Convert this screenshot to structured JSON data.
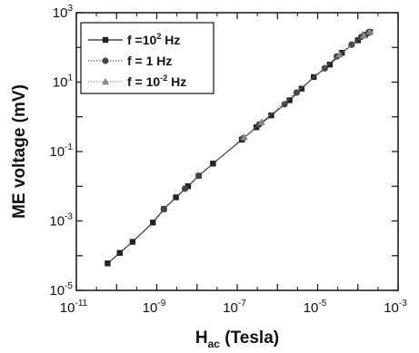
{
  "chart_data": {
    "type": "scatter",
    "xscale": "log",
    "yscale": "log",
    "xlim": [
      1e-11,
      0.001
    ],
    "ylim": [
      1e-05,
      1000
    ],
    "x_ticks": [
      {
        "value": 1e-11,
        "base": "10",
        "exp": "-11"
      },
      {
        "value": 1e-09,
        "base": "10",
        "exp": "-9"
      },
      {
        "value": 1e-07,
        "base": "10",
        "exp": "-7"
      },
      {
        "value": 1e-05,
        "base": "10",
        "exp": "-5"
      },
      {
        "value": 0.001,
        "base": "10",
        "exp": "-3"
      }
    ],
    "y_ticks": [
      {
        "value": 1e-05,
        "base": "10",
        "exp": "-5"
      },
      {
        "value": 0.001,
        "base": "10",
        "exp": "-3"
      },
      {
        "value": 0.1,
        "base": "10",
        "exp": "-1"
      },
      {
        "value": 10,
        "base": "10",
        "exp": "1"
      },
      {
        "value": 1000,
        "base": "10",
        "exp": "3"
      }
    ],
    "xlabel": {
      "main": "H",
      "sub": "ac",
      "rest": " (Tesla)"
    },
    "ylabel": "ME voltage (mV)",
    "legend_position": "top-left",
    "series": [
      {
        "name": {
          "pre": "f =10",
          "sup": "2",
          "post": " Hz"
        },
        "marker": "square",
        "color": "#222222",
        "line_style": "solid",
        "x": [
          6e-11,
          1.2e-10,
          2.5e-10,
          8e-10,
          1.5e-09,
          3e-09,
          6e-09,
          1.1e-08,
          2.5e-08,
          1.3e-07,
          3e-07,
          7e-07,
          2e-06,
          4e-06,
          8e-06,
          2e-05,
          4e-05,
          0.0001,
          0.00015,
          0.0002
        ],
        "y": [
          6e-05,
          0.00012,
          0.00025,
          0.0009,
          0.0022,
          0.0048,
          0.01,
          0.02,
          0.045,
          0.22,
          0.5,
          1.1,
          3,
          6.5,
          14,
          32,
          70,
          160,
          230,
          280
        ]
      },
      {
        "name": {
          "pre": "f = 1 Hz",
          "sup": "",
          "post": ""
        },
        "marker": "circle",
        "color": "#444444",
        "line_style": "dotted",
        "x": [
          1.5e-09,
          5e-09,
          1.1e-08,
          1.4e-07,
          3.5e-07,
          1.5e-06,
          3e-06,
          1.5e-05,
          3e-05,
          7e-05,
          0.00012,
          0.00018
        ],
        "y": [
          0.0022,
          0.0085,
          0.02,
          0.24,
          0.6,
          2.3,
          5,
          25,
          55,
          120,
          200,
          260
        ]
      },
      {
        "name": {
          "pre": "f = 10",
          "sup": "-2",
          "post": " Hz"
        },
        "marker": "triangle",
        "color": "#888888",
        "line_style": "dotted",
        "x": [
          1.5e-07,
          4e-07,
          3.5e-05,
          0.00014,
          0.0002
        ],
        "y": [
          0.26,
          0.7,
          62,
          220,
          290
        ]
      }
    ]
  }
}
